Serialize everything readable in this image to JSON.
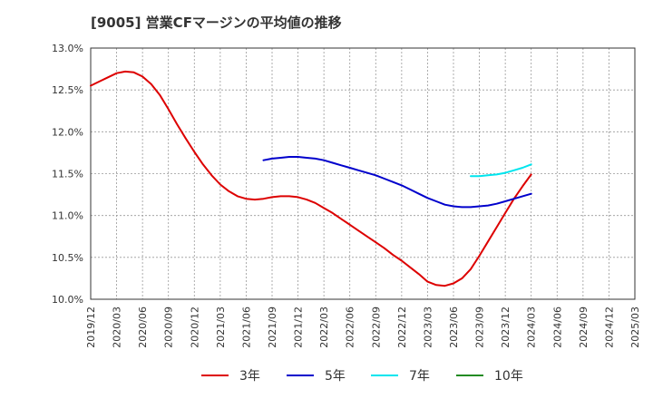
{
  "chart_data": {
    "type": "line",
    "title": "[9005]  営業CFマージンの平均値の推移",
    "xlabel": "",
    "ylabel": "",
    "ylim": [
      10.0,
      13.0
    ],
    "y_ticks": [
      "10.0%",
      "10.5%",
      "11.0%",
      "11.5%",
      "12.0%",
      "12.5%",
      "13.0%"
    ],
    "x_ticks": [
      "2019/12",
      "2020/03",
      "2020/06",
      "2020/09",
      "2020/12",
      "2021/03",
      "2021/06",
      "2021/09",
      "2021/12",
      "2022/03",
      "2022/06",
      "2022/09",
      "2022/12",
      "2023/03",
      "2023/06",
      "2023/09",
      "2023/12",
      "2024/03",
      "2024/06",
      "2024/09",
      "2024/12",
      "2025/03"
    ],
    "grid": true,
    "legend_position": "bottom",
    "series": [
      {
        "name": "3年",
        "color": "#dd0000",
        "x": [
          "2019/12",
          "2020/01",
          "2020/02",
          "2020/03",
          "2020/04",
          "2020/05",
          "2020/06",
          "2020/07",
          "2020/08",
          "2020/09",
          "2020/10",
          "2020/11",
          "2020/12",
          "2021/01",
          "2021/02",
          "2021/03",
          "2021/04",
          "2021/05",
          "2021/06",
          "2021/07",
          "2021/08",
          "2021/09",
          "2021/10",
          "2021/11",
          "2021/12",
          "2022/01",
          "2022/02",
          "2022/03",
          "2022/04",
          "2022/05",
          "2022/06",
          "2022/07",
          "2022/08",
          "2022/09",
          "2022/10",
          "2022/11",
          "2022/12",
          "2023/01",
          "2023/02",
          "2023/03",
          "2023/04",
          "2023/05",
          "2023/06",
          "2023/07",
          "2023/08",
          "2023/09",
          "2023/10",
          "2023/11",
          "2023/12",
          "2024/01",
          "2024/02",
          "2024/03"
        ],
        "values": [
          12.55,
          12.6,
          12.65,
          12.7,
          12.72,
          12.71,
          12.66,
          12.57,
          12.44,
          12.27,
          12.09,
          11.92,
          11.76,
          11.61,
          11.48,
          11.37,
          11.29,
          11.23,
          11.2,
          11.19,
          11.2,
          11.22,
          11.23,
          11.23,
          11.22,
          11.19,
          11.15,
          11.09,
          11.03,
          10.96,
          10.89,
          10.82,
          10.75,
          10.68,
          10.61,
          10.53,
          10.46,
          10.38,
          10.3,
          10.21,
          10.17,
          10.16,
          10.19,
          10.25,
          10.36,
          10.52,
          10.69,
          10.86,
          11.03,
          11.2,
          11.35,
          11.49
        ]
      },
      {
        "name": "5年",
        "color": "#0000cc",
        "x": [
          "2021/08",
          "2021/09",
          "2021/10",
          "2021/11",
          "2021/12",
          "2022/01",
          "2022/02",
          "2022/03",
          "2022/04",
          "2022/05",
          "2022/06",
          "2022/07",
          "2022/08",
          "2022/09",
          "2022/10",
          "2022/11",
          "2022/12",
          "2023/01",
          "2023/02",
          "2023/03",
          "2023/04",
          "2023/05",
          "2023/06",
          "2023/07",
          "2023/08",
          "2023/09",
          "2023/10",
          "2023/11",
          "2023/12",
          "2024/01",
          "2024/02",
          "2024/03"
        ],
        "values": [
          11.66,
          11.68,
          11.69,
          11.7,
          11.7,
          11.69,
          11.68,
          11.66,
          11.63,
          11.6,
          11.57,
          11.54,
          11.51,
          11.48,
          11.44,
          11.4,
          11.36,
          11.31,
          11.26,
          11.21,
          11.17,
          11.13,
          11.11,
          11.1,
          11.1,
          11.11,
          11.12,
          11.14,
          11.17,
          11.2,
          11.23,
          11.26
        ]
      },
      {
        "name": "7年",
        "color": "#00e5ee",
        "x": [
          "2023/08",
          "2023/09",
          "2023/10",
          "2023/11",
          "2023/12",
          "2024/01",
          "2024/02",
          "2024/03"
        ],
        "values": [
          11.47,
          11.47,
          11.48,
          11.49,
          11.51,
          11.54,
          11.57,
          11.61
        ]
      },
      {
        "name": "10年",
        "color": "#228b22",
        "x": [],
        "values": []
      }
    ]
  }
}
